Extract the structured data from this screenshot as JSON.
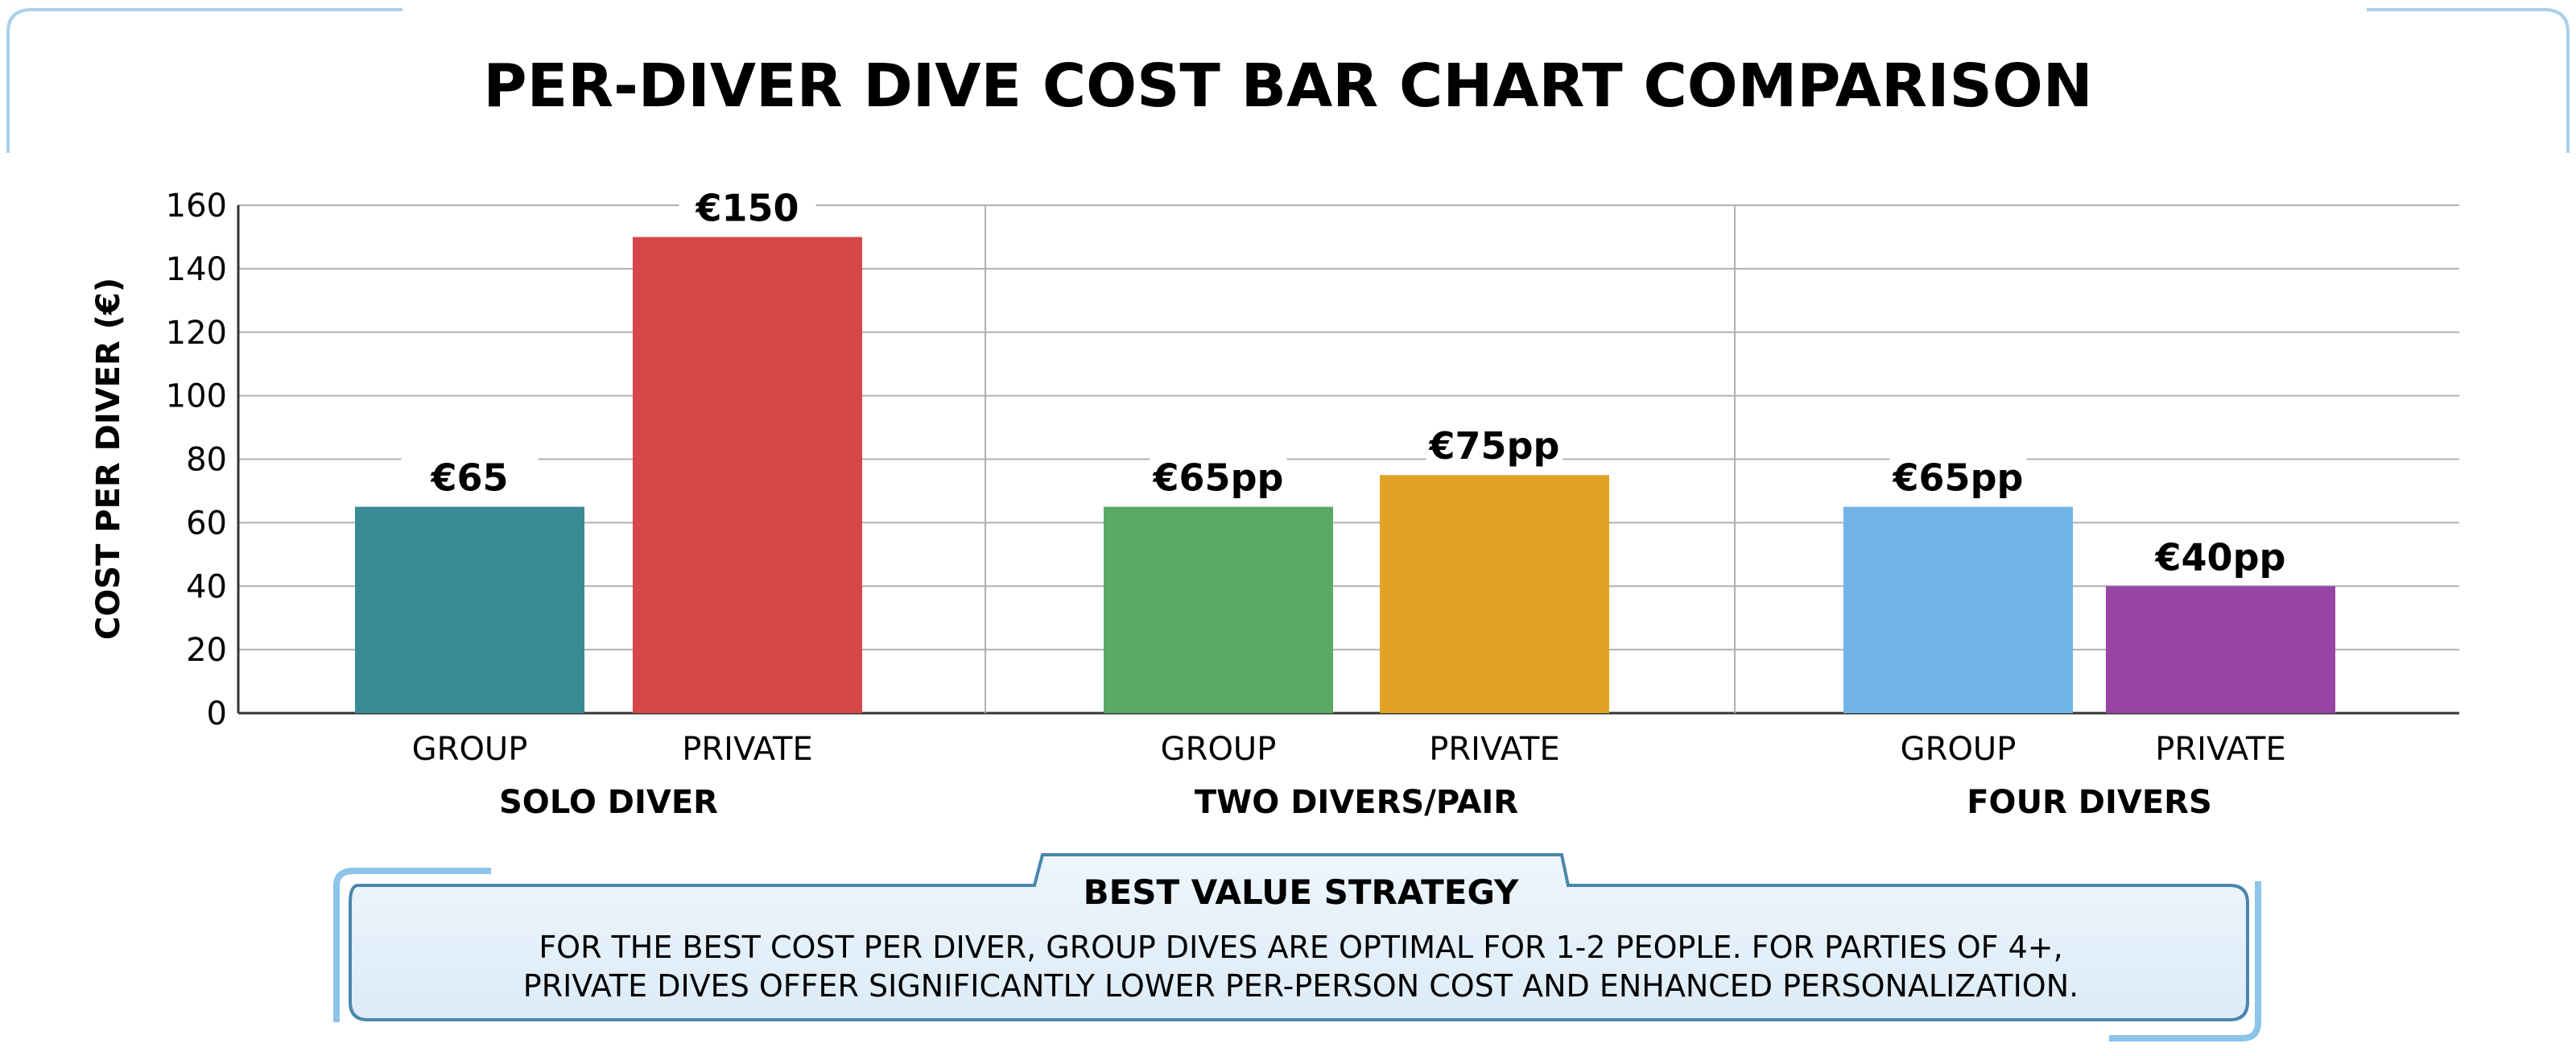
{
  "chart_data": {
    "type": "bar",
    "title": "PER-DIVER DIVE COST BAR CHART COMPARISON",
    "ylabel": "COST PER DIVER (€)",
    "xlabel": "",
    "ylim": [
      0,
      160
    ],
    "yticks": [
      0,
      20,
      40,
      60,
      80,
      100,
      120,
      140,
      160
    ],
    "grid": true,
    "groups": [
      {
        "name": "SOLO DIVER",
        "bars": [
          {
            "category": "GROUP",
            "value": 65,
            "label": "€65",
            "color": "#3a8a96"
          },
          {
            "category": "PRIVATE",
            "value": 150,
            "label": "€150",
            "color": "#d64747"
          }
        ]
      },
      {
        "name": "TWO DIVERS/PAIR",
        "bars": [
          {
            "category": "GROUP",
            "value": 65,
            "label": "€65pp",
            "color": "#5aaa66"
          },
          {
            "category": "PRIVATE",
            "value": 75,
            "label": "€75pp",
            "color": "#e0a323"
          }
        ]
      },
      {
        "name": "FOUR DIVERS",
        "bars": [
          {
            "category": "GROUP",
            "value": 65,
            "label": "€65pp",
            "color": "#70b4e6"
          },
          {
            "category": "PRIVATE",
            "value": 40,
            "label": "€40pp",
            "color": "#9645a6"
          }
        ]
      }
    ]
  },
  "note": {
    "heading": "BEST VALUE STRATEGY",
    "line1": "FOR THE BEST COST PER DIVER, GROUP DIVES ARE OPTIMAL FOR 1-2 PEOPLE. FOR PARTIES OF 4+,",
    "line2": "PRIVATE DIVES OFFER SIGNIFICANTLY LOWER PER-PERSON COST AND ENHANCED PERSONALIZATION."
  }
}
